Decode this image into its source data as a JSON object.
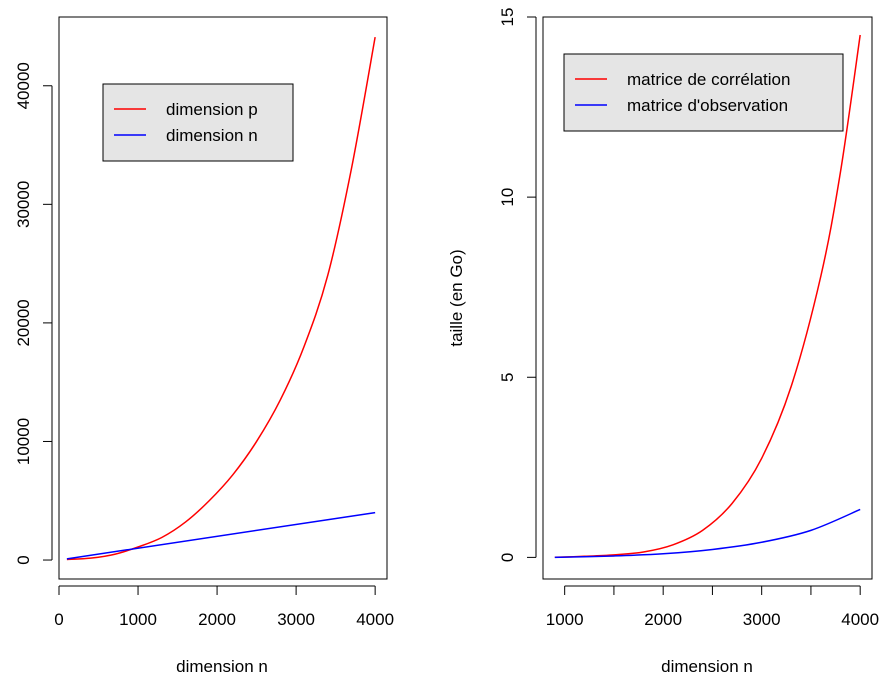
{
  "chart_data": [
    {
      "type": "line",
      "title": "",
      "xlabel": "dimension n",
      "ylabel": "",
      "xlim": [
        0,
        4150
      ],
      "ylim": [
        -1600,
        45800
      ],
      "xticks": [
        0,
        1000,
        2000,
        3000,
        4000
      ],
      "xtick_labels": [
        "0",
        "1000",
        "2000",
        "3000",
        "4000"
      ],
      "yticks": [
        0,
        10000,
        20000,
        30000,
        40000
      ],
      "ytick_labels": [
        "0",
        "10000",
        "20000",
        "30000",
        "40000"
      ],
      "grid": false,
      "legend_position": "top-center",
      "series": [
        {
          "name": "dimension p",
          "color": "#ff0000",
          "x": [
            100,
            400,
            700,
            1000,
            1300,
            1600,
            1900,
            2200,
            2500,
            2800,
            3100,
            3400,
            3700,
            4000
          ],
          "y": [
            50,
            160,
            480,
            1100,
            1900,
            3200,
            5000,
            7200,
            10000,
            13500,
            18000,
            24000,
            33000,
            44100
          ]
        },
        {
          "name": "dimension n",
          "color": "#0000ff",
          "x": [
            100,
            4000
          ],
          "y": [
            100,
            4000
          ]
        }
      ]
    },
    {
      "type": "line",
      "title": "",
      "xlabel": "dimension n",
      "ylabel": "taille (en Go)",
      "xlim": [
        780,
        4120
      ],
      "ylim": [
        -0.6,
        15.0
      ],
      "xticks": [
        1000,
        1500,
        2000,
        2500,
        3000,
        3500,
        4000
      ],
      "xtick_labels": [
        "1000",
        "",
        "2000",
        "",
        "3000",
        "",
        "4000"
      ],
      "yticks": [
        0,
        5,
        10,
        15
      ],
      "ytick_labels": [
        "0",
        "5",
        "10",
        "15"
      ],
      "grid": false,
      "legend_position": "top-right",
      "series": [
        {
          "name": "matrice de corrélation",
          "color": "#ff0000",
          "x": [
            900,
            1200,
            1500,
            1800,
            2100,
            2400,
            2700,
            3000,
            3300,
            3600,
            3800,
            4000
          ],
          "y": [
            0.003,
            0.03,
            0.07,
            0.15,
            0.35,
            0.75,
            1.5,
            2.75,
            4.75,
            7.8,
            10.7,
            14.5
          ]
        },
        {
          "name": "matrice d'observation",
          "color": "#0000ff",
          "x": [
            900,
            1500,
            2000,
            2500,
            3000,
            3500,
            4000
          ],
          "y": [
            0.0,
            0.04,
            0.1,
            0.22,
            0.42,
            0.75,
            1.33
          ]
        }
      ]
    }
  ]
}
